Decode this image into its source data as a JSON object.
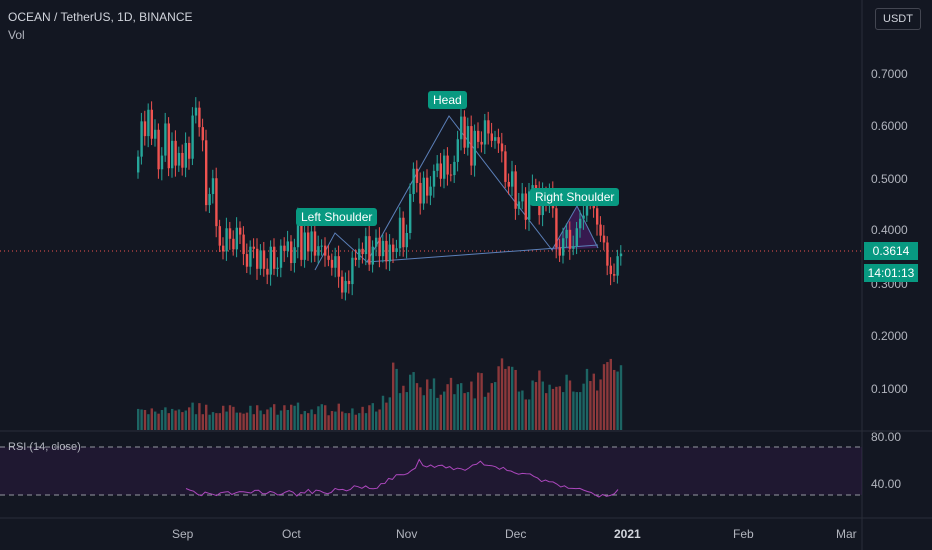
{
  "header": {
    "symbol": "OCEAN / TetherUS, 1D, BINANCE",
    "volume_label": "Vol",
    "currency_button": "USDT"
  },
  "price_axis": {
    "ticks": [
      "0.7000",
      "0.6000",
      "0.5000",
      "0.4000",
      "0.3000",
      "0.2000",
      "0.1000"
    ],
    "current_price": "0.3614",
    "countdown": "14:01:13"
  },
  "rsi": {
    "label": "RSI (14, close)",
    "upper": "80.00",
    "lower": "40.00"
  },
  "time_axis": {
    "labels": [
      "Sep",
      "Oct",
      "Nov",
      "Dec",
      "2021",
      "Feb",
      "Mar"
    ]
  },
  "annotations": {
    "left_shoulder": "Left Shoulder",
    "head": "Head",
    "right_shoulder": "Right Shoulder"
  },
  "colors": {
    "up": "#26a69a",
    "down": "#ef5350",
    "pattern": "#7b1fa2",
    "tag": "#089981"
  },
  "chart_data": {
    "type": "candlestick",
    "closes": [
      0.545,
      0.612,
      0.584,
      0.634,
      0.579,
      0.596,
      0.521,
      0.547,
      0.608,
      0.523,
      0.575,
      0.528,
      0.552,
      0.524,
      0.571,
      0.541,
      0.623,
      0.638,
      0.601,
      0.576,
      0.453,
      0.474,
      0.504,
      0.413,
      0.376,
      0.365,
      0.409,
      0.389,
      0.369,
      0.41,
      0.397,
      0.36,
      0.336,
      0.374,
      0.37,
      0.332,
      0.367,
      0.332,
      0.321,
      0.374,
      0.332,
      0.334,
      0.376,
      0.366,
      0.384,
      0.343,
      0.373,
      0.428,
      0.349,
      0.401,
      0.365,
      0.403,
      0.357,
      0.375,
      0.376,
      0.357,
      0.349,
      0.334,
      0.356,
      0.317,
      0.287,
      0.309,
      0.303,
      0.353,
      0.349,
      0.37,
      0.36,
      0.394,
      0.34,
      0.374,
      0.391,
      0.356,
      0.385,
      0.346,
      0.378,
      0.364,
      0.371,
      0.429,
      0.373,
      0.4,
      0.474,
      0.522,
      0.495,
      0.456,
      0.505,
      0.471,
      0.488,
      0.518,
      0.532,
      0.503,
      0.547,
      0.511,
      0.51,
      0.535,
      0.578,
      0.621,
      0.562,
      0.603,
      0.528,
      0.594,
      0.573,
      0.568,
      0.614,
      0.589,
      0.575,
      0.582,
      0.57,
      0.555,
      0.497,
      0.488,
      0.517,
      0.446,
      0.46,
      0.475,
      0.425,
      0.479,
      0.491,
      0.482,
      0.434,
      0.476,
      0.453,
      0.478,
      0.447,
      0.373,
      0.357,
      0.39,
      0.406,
      0.37,
      0.375,
      0.409,
      0.427,
      0.433,
      0.462,
      0.46,
      0.447,
      0.416,
      0.395,
      0.382,
      0.338,
      0.322,
      0.319,
      0.356,
      0.361
    ],
    "volumes": [
      0.04,
      0.039,
      0.038,
      0.03,
      0.041,
      0.035,
      0.031,
      0.038,
      0.043,
      0.032,
      0.04,
      0.037,
      0.039,
      0.034,
      0.037,
      0.043,
      0.052,
      0.03,
      0.051,
      0.03,
      0.048,
      0.029,
      0.034,
      0.032,
      0.032,
      0.046,
      0.035,
      0.047,
      0.044,
      0.033,
      0.033,
      0.031,
      0.033,
      0.046,
      0.03,
      0.047,
      0.037,
      0.03,
      0.039,
      0.043,
      0.049,
      0.029,
      0.037,
      0.047,
      0.038,
      0.048,
      0.046,
      0.052,
      0.03,
      0.036,
      0.032,
      0.039,
      0.03,
      0.045,
      0.049,
      0.047,
      0.028,
      0.036,
      0.035,
      0.05,
      0.035,
      0.032,
      0.032,
      0.041,
      0.029,
      0.032,
      0.044,
      0.032,
      0.047,
      0.051,
      0.035,
      0.039,
      0.065,
      0.052,
      0.062,
      0.128,
      0.116,
      0.07,
      0.084,
      0.072,
      0.105,
      0.11,
      0.089,
      0.081,
      0.066,
      0.096,
      0.078,
      0.098,
      0.061,
      0.067,
      0.073,
      0.087,
      0.099,
      0.068,
      0.087,
      0.089,
      0.07,
      0.072,
      0.092,
      0.06,
      0.109,
      0.108,
      0.063,
      0.071,
      0.089,
      0.091,
      0.121,
      0.136,
      0.116,
      0.121,
      0.12,
      0.114,
      0.073,
      0.075,
      0.058,
      0.058,
      0.094,
      0.091,
      0.113,
      0.092,
      0.07,
      0.086,
      0.078,
      0.082,
      0.083,
      0.072,
      0.105,
      0.094,
      0.073,
      0.072,
      0.072,
      0.088,
      0.116,
      0.093,
      0.107,
      0.075,
      0.096,
      0.125,
      0.129,
      0.135,
      0.114,
      0.111,
      0.123
    ],
    "rsi_values": [
      45.4,
      44.1,
      43.2,
      40.6,
      39.4,
      42.4,
      41.4,
      40.6,
      39.5,
      41.8,
      42.4,
      42.8,
      40.4,
      41.8,
      42.8,
      42.7,
      42.2,
      41.7,
      43.8,
      43.9,
      41.2,
      41.1,
      43.0,
      42.2,
      40.0,
      40.6,
      42.4,
      43.6,
      42.3,
      39.1,
      42.1,
      41.7,
      44.7,
      41.2,
      44.1,
      43.6,
      42.0,
      41.1,
      42.2,
      45.5,
      44.3,
      44.7,
      43.5,
      44.6,
      47.7,
      46.9,
      45.6,
      47.6,
      45.4,
      45.2,
      45.7,
      49.5,
      49.6,
      53.8,
      53.0,
      56.9,
      57.0,
      56.8,
      57.9,
      60.6,
      62.4,
      69.6,
      64.5,
      63.3,
      65.0,
      63.0,
      64.5,
      64.8,
      62.6,
      63.7,
      61.1,
      62.4,
      61.8,
      60.6,
      62.5,
      65.0,
      65.6,
      68.2,
      65.0,
      64.7,
      64.4,
      63.5,
      61.4,
      63.1,
      60.4,
      60.0,
      58.4,
      57.3,
      58.0,
      57.7,
      57.6,
      55.5,
      54.1,
      51.2,
      52.5,
      51.1,
      50.9,
      49.2,
      46.7,
      47.7,
      45.6,
      45.5,
      45.3,
      45.5,
      44.1,
      42.9,
      42.1,
      40.0,
      38.3,
      40.5,
      38.9,
      39.7,
      40.9,
      44.6
    ],
    "price_ylim": [
      0.05,
      0.75
    ],
    "rsi_ylim": [
      20,
      100
    ],
    "x_labels": [
      "Sep",
      "Oct",
      "Nov",
      "Dec",
      "2021",
      "Feb",
      "Mar"
    ],
    "pattern": {
      "left_shoulder": 0.4,
      "neckline_left": 0.365,
      "head": 0.622,
      "neckline_right": 0.38,
      "right_shoulder": 0.445
    }
  }
}
